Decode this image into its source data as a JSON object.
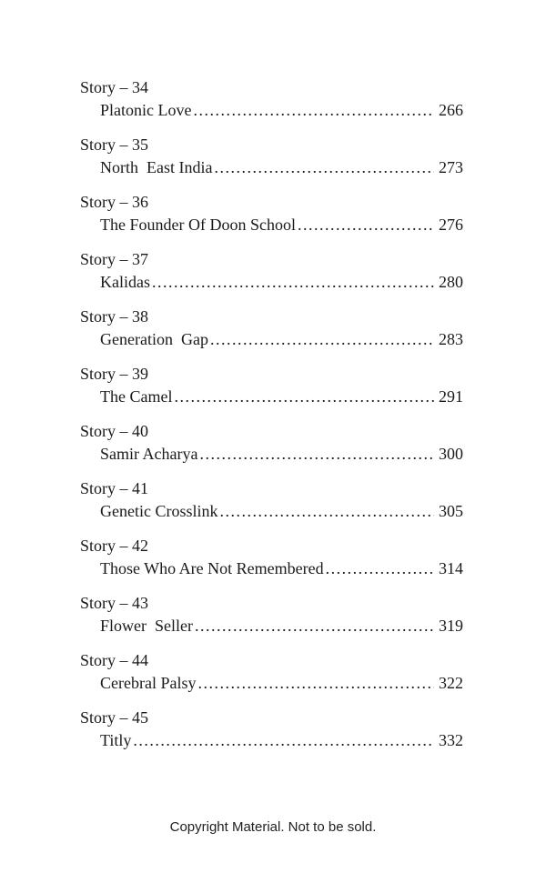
{
  "toc": {
    "entries": [
      {
        "heading": "Story – 34",
        "title": "Platonic Love",
        "page": "266"
      },
      {
        "heading": "Story – 35",
        "title": "North  East India",
        "page": "273"
      },
      {
        "heading": "Story – 36",
        "title": "The Founder Of Doon School",
        "page": "276"
      },
      {
        "heading": "Story – 37",
        "title": "Kalidas",
        "page": "280"
      },
      {
        "heading": "Story – 38",
        "title": "Generation  Gap",
        "page": "283"
      },
      {
        "heading": "Story – 39",
        "title": "The Camel",
        "page": "291"
      },
      {
        "heading": "Story – 40",
        "title": "Samir Acharya",
        "page": "300"
      },
      {
        "heading": "Story – 41",
        "title": "Genetic Crosslink",
        "page": "305"
      },
      {
        "heading": "Story – 42",
        "title": "Those Who Are Not Remembered",
        "page": "314"
      },
      {
        "heading": "Story – 43",
        "title": "Flower  Seller",
        "page": "319"
      },
      {
        "heading": "Story – 44",
        "title": "Cerebral Palsy",
        "page": "322"
      },
      {
        "heading": "Story – 45",
        "title": "Titly",
        "page": "332"
      }
    ]
  },
  "footer": {
    "text": "Copyright Material. Not to be sold."
  }
}
